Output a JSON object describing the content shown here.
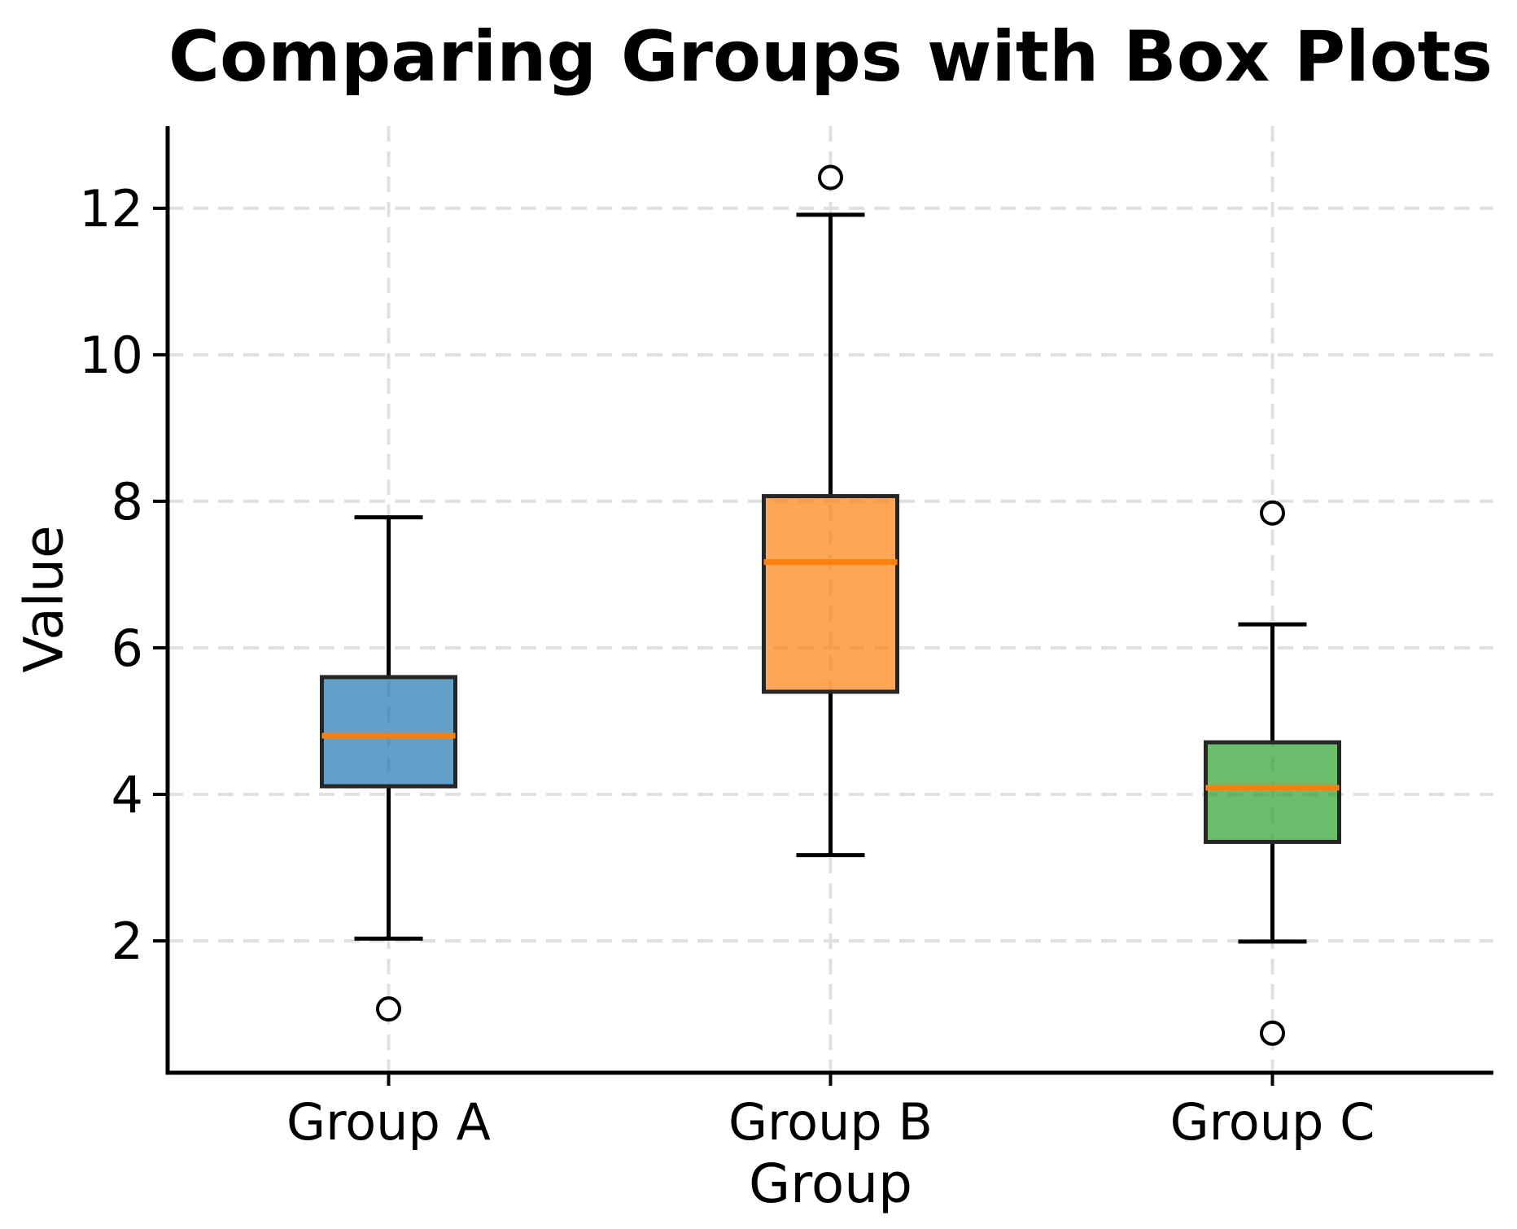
{
  "chart_data": {
    "type": "boxplot",
    "title": "Comparing Groups with Box Plots",
    "xlabel": "Group",
    "ylabel": "Value",
    "categories": [
      "Group A",
      "Group B",
      "Group C"
    ],
    "yticks": [
      2,
      4,
      6,
      8,
      10,
      12
    ],
    "ylim": [
      0.2,
      13.12
    ],
    "grid": {
      "visible": true,
      "axis": "both",
      "line_style": "dashed"
    },
    "legend": "none",
    "series": [
      {
        "name": "Group A",
        "whisker_low": 2.03,
        "q1": 4.11,
        "median": 4.8,
        "q3": 5.6,
        "whisker_high": 7.78,
        "outliers": [
          1.07
        ],
        "color": "#1f77b4"
      },
      {
        "name": "Group B",
        "whisker_low": 3.17,
        "q1": 5.4,
        "median": 7.17,
        "q3": 8.07,
        "whisker_high": 11.91,
        "outliers": [
          12.42
        ],
        "color": "#ff7f0e"
      },
      {
        "name": "Group C",
        "whisker_low": 1.99,
        "q1": 3.35,
        "median": 4.09,
        "q3": 4.71,
        "whisker_high": 6.32,
        "outliers": [
          7.84,
          0.74
        ],
        "color": "#2ca02c"
      }
    ],
    "style": {
      "fill_alpha": 0.7,
      "box_edge_color": "#262626",
      "median_color": "#ff7f0e",
      "whisker_color": "#000000",
      "outlier_edge_color": "#000000",
      "outlier_fill_color": "#ffffff",
      "grid_color": "#e0e0e0",
      "spine_color": "#000000",
      "tick_color": "#000000",
      "background_color": "#ffffff"
    }
  }
}
